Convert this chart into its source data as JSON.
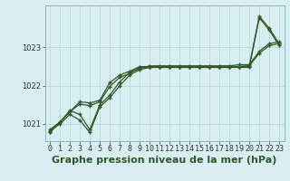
{
  "title": "Graphe pression niveau de la mer (hPa)",
  "xlabel_hours": [
    0,
    1,
    2,
    3,
    4,
    5,
    6,
    7,
    8,
    9,
    10,
    11,
    12,
    13,
    14,
    15,
    16,
    17,
    18,
    19,
    20,
    21,
    22,
    23
  ],
  "xlim": [
    -0.5,
    23.5
  ],
  "ylim": [
    1020.55,
    1024.1
  ],
  "yticks": [
    1021,
    1022,
    1023
  ],
  "bg_color": "#d8eef0",
  "grid_color": "#b8d4d8",
  "line_color": "#2d5a27",
  "series": [
    [
      1020.85,
      1021.05,
      1021.35,
      1021.25,
      1020.85,
      1021.5,
      1021.75,
      1022.1,
      1022.35,
      1022.45,
      1022.52,
      1022.52,
      1022.52,
      1022.52,
      1022.52,
      1022.52,
      1022.52,
      1022.52,
      1022.52,
      1022.55,
      1022.55,
      1022.9,
      1023.1,
      1023.15
    ],
    [
      1020.82,
      1021.0,
      1021.25,
      1021.1,
      1020.78,
      1021.45,
      1021.68,
      1022.0,
      1022.28,
      1022.42,
      1022.48,
      1022.48,
      1022.48,
      1022.48,
      1022.48,
      1022.48,
      1022.48,
      1022.48,
      1022.48,
      1022.5,
      1022.52,
      1022.85,
      1023.05,
      1023.1
    ],
    [
      1020.78,
      1021.05,
      1021.32,
      1021.58,
      1021.55,
      1021.62,
      1022.08,
      1022.28,
      1022.38,
      1022.5,
      1022.5,
      1022.5,
      1022.5,
      1022.5,
      1022.5,
      1022.5,
      1022.5,
      1022.5,
      1022.5,
      1022.5,
      1022.52,
      1023.82,
      1023.5,
      1023.1
    ],
    [
      1020.78,
      1021.05,
      1021.32,
      1021.52,
      1021.48,
      1021.58,
      1021.98,
      1022.22,
      1022.32,
      1022.48,
      1022.48,
      1022.48,
      1022.48,
      1022.48,
      1022.48,
      1022.48,
      1022.48,
      1022.48,
      1022.48,
      1022.48,
      1022.48,
      1023.78,
      1023.45,
      1023.05
    ]
  ],
  "marker": "+",
  "markersize": 3.5,
  "markeredgewidth": 1.0,
  "linewidth": 0.9,
  "title_fontsize": 8,
  "tick_fontsize": 6,
  "ylabel_fontsize": 6
}
